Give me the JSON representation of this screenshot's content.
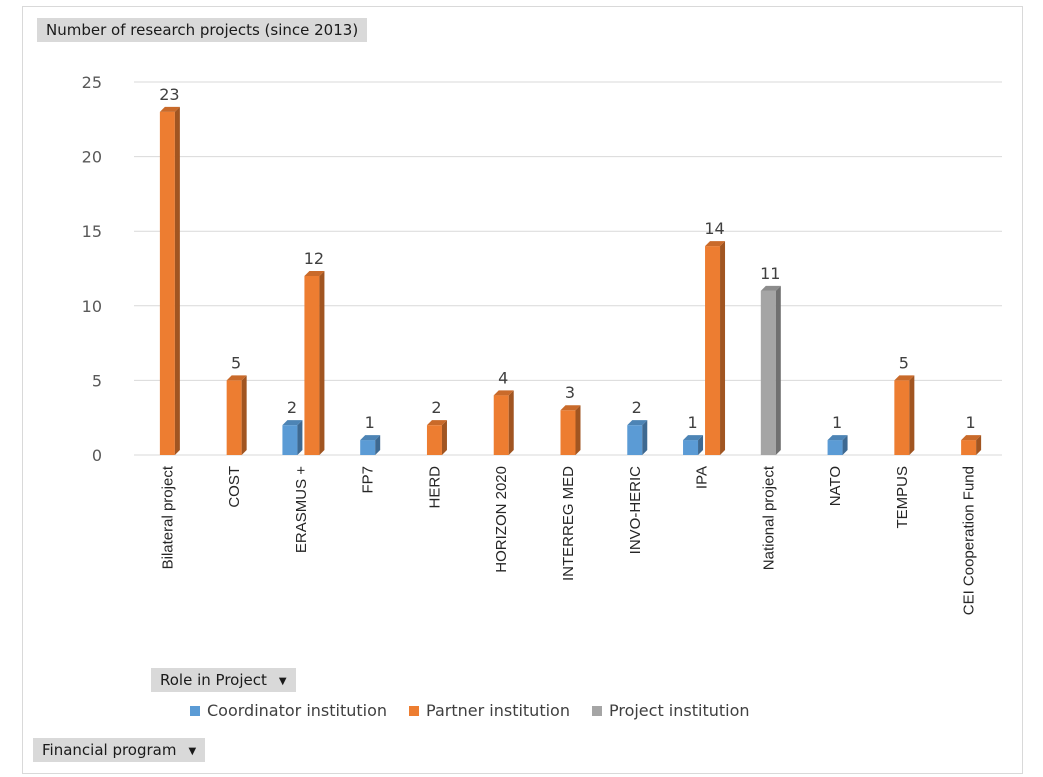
{
  "chart_title_button": {
    "label": "Number of research projects (since 2013)"
  },
  "role_filter": {
    "label": "Role in Project",
    "icon": "chevron-down-icon"
  },
  "program_filter": {
    "label": "Financial program",
    "icon": "chevron-down-icon"
  },
  "colors": {
    "coordinator": "#5b9bd5",
    "partner": "#ed7d31",
    "project": "#a5a5a5",
    "grid": "#d9d9d9",
    "text": "#595959"
  },
  "legend": [
    {
      "name": "Coordinator institution",
      "color": "#5b9bd5"
    },
    {
      "name": "Partner institution",
      "color": "#ed7d31"
    },
    {
      "name": "Project institution",
      "color": "#a5a5a5"
    }
  ],
  "chart_data": {
    "type": "bar",
    "title": "Number of research projects (since 2013)",
    "xlabel": "",
    "ylabel": "",
    "ylim": [
      0,
      25
    ],
    "yticks": [
      0,
      5,
      10,
      15,
      20,
      25
    ],
    "grid": true,
    "legend_position": "bottom",
    "categories": [
      "Bilateral project",
      "COST",
      "ERASMUS +",
      "FP7",
      "HERD",
      "HORIZON 2020",
      "INTERREG MED",
      "INVO-HERIC",
      "IPA",
      "National project",
      "NATO",
      "TEMPUS",
      "CEI Cooperation Fund"
    ],
    "series": [
      {
        "name": "Coordinator institution",
        "values": [
          null,
          null,
          2,
          1,
          null,
          null,
          null,
          2,
          1,
          null,
          1,
          null,
          null
        ]
      },
      {
        "name": "Partner institution",
        "values": [
          23,
          5,
          12,
          null,
          2,
          4,
          3,
          null,
          14,
          null,
          null,
          5,
          1
        ]
      },
      {
        "name": "Project institution",
        "values": [
          null,
          null,
          null,
          null,
          null,
          null,
          null,
          null,
          null,
          11,
          null,
          null,
          null
        ]
      }
    ]
  }
}
